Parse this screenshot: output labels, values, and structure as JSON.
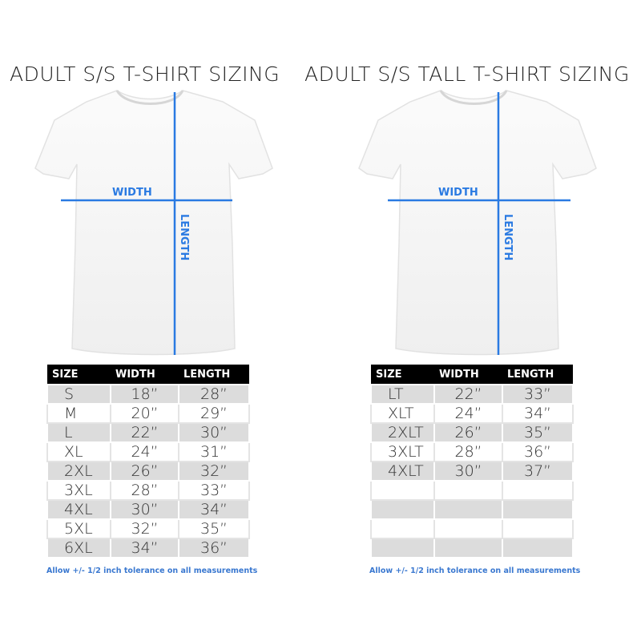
{
  "charts": [
    {
      "title": "ADULT S/S T-SHIRT SIZING",
      "width_label": "WIDTH",
      "length_label": "LENGTH",
      "headers": [
        "SIZE",
        "WIDTH",
        "LENGTH"
      ],
      "rows": [
        [
          "S",
          "18”",
          "28”"
        ],
        [
          "M",
          "20”",
          "29”"
        ],
        [
          "L",
          "22”",
          "30”"
        ],
        [
          "XL",
          "24”",
          "31”"
        ],
        [
          "2XL",
          "26”",
          "32”"
        ],
        [
          "3XL",
          "28”",
          "33”"
        ],
        [
          "4XL",
          "30”",
          "34”"
        ],
        [
          "5XL",
          "32”",
          "35”"
        ],
        [
          "6XL",
          "34”",
          "36”"
        ]
      ],
      "note": "Allow +/- 1/2 inch tolerance on all measurements"
    },
    {
      "title": "ADULT S/S TALL T-SHIRT SIZING",
      "width_label": "WIDTH",
      "length_label": "LENGTH",
      "headers": [
        "SIZE",
        "WIDTH",
        "LENGTH"
      ],
      "rows": [
        [
          "LT",
          "22”",
          "33”"
        ],
        [
          "XLT",
          "24”",
          "34”"
        ],
        [
          "2XLT",
          "26”",
          "35”"
        ],
        [
          "3XLT",
          "28”",
          "36”"
        ],
        [
          "4XLT",
          "30”",
          "37”"
        ],
        [
          "",
          "",
          ""
        ],
        [
          "",
          "",
          ""
        ],
        [
          "",
          "",
          ""
        ],
        [
          "",
          "",
          ""
        ]
      ],
      "note": "Allow +/- 1/2 inch tolerance on all measurements"
    }
  ],
  "colors": {
    "measure_line": "#2a7ae2",
    "header_bg": "#000000",
    "stripe": "#dcdcdc"
  }
}
